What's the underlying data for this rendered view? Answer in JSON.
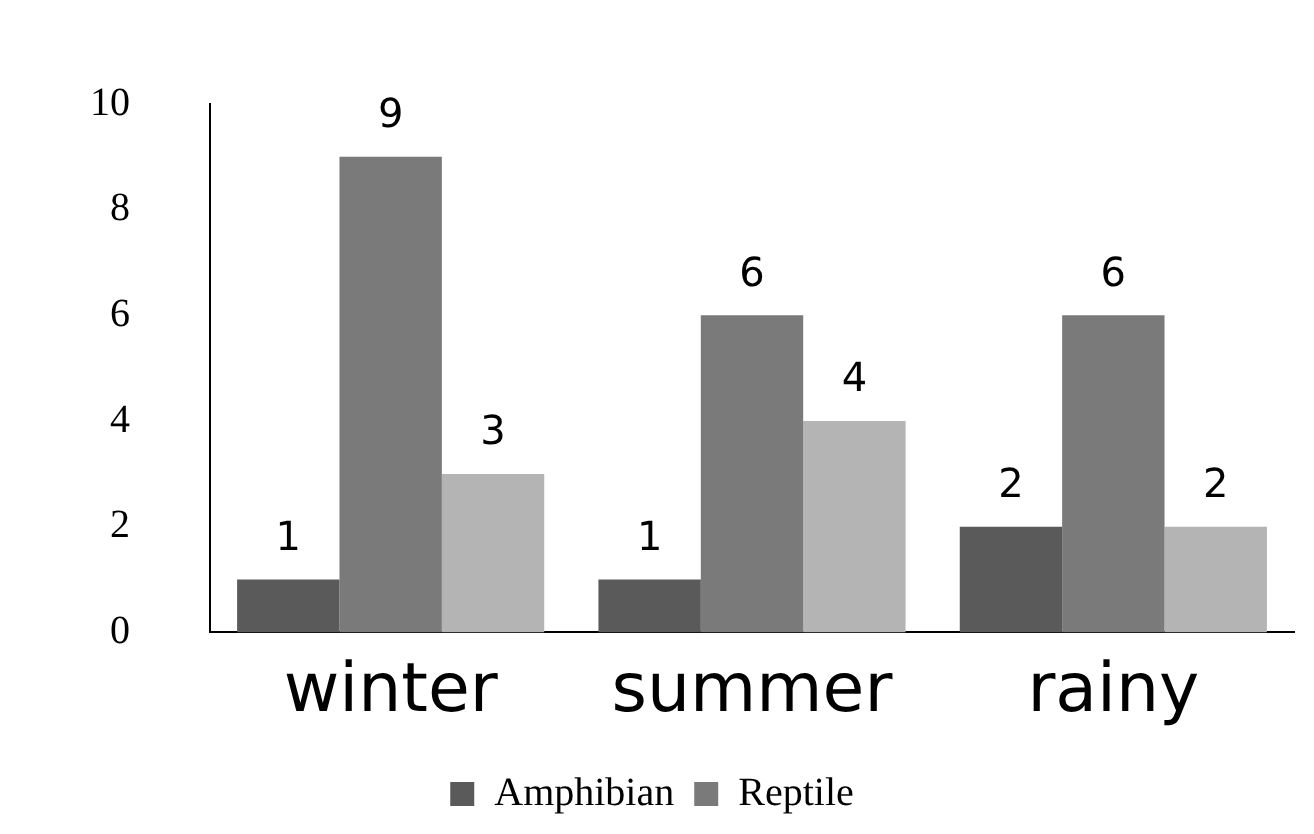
{
  "chart_data": {
    "type": "bar",
    "categories": [
      "winter",
      "summer",
      "rainy"
    ],
    "series": [
      {
        "name": "Amphibian",
        "color": "#5a5a5a",
        "values": [
          1,
          1,
          2
        ]
      },
      {
        "name": "Reptile",
        "color": "#7a7a7a",
        "values": [
          9,
          6,
          6
        ]
      },
      {
        "color": "#b4b4b4",
        "values": [
          3,
          4,
          2
        ]
      }
    ],
    "ylim": [
      0,
      10
    ],
    "yticks": [
      0,
      2,
      4,
      6,
      8,
      10
    ],
    "grid": false,
    "legend": "bottom",
    "data_labels": true
  }
}
